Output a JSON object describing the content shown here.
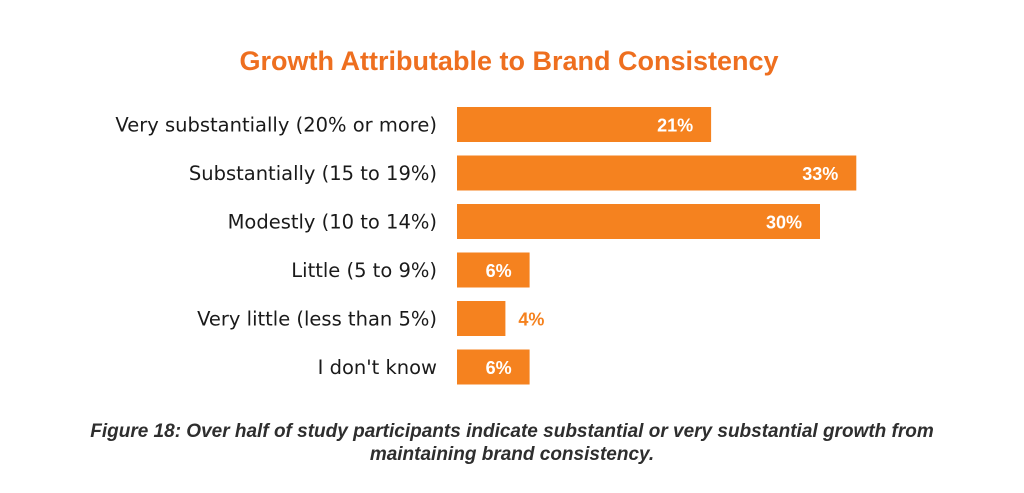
{
  "chart_data": {
    "type": "bar",
    "orientation": "horizontal",
    "title": "Growth Attributable to Brand Consistency",
    "categories": [
      "Very substantially (20% or more)",
      "Substantially (15 to 19%)",
      "Modestly (10 to 14%)",
      "Little (5 to 9%)",
      "Very little (less than 5%)",
      "I don't know"
    ],
    "values": [
      21,
      33,
      30,
      6,
      4,
      6
    ],
    "value_labels": [
      "21%",
      "33%",
      "30%",
      "6%",
      "4%",
      "6%"
    ],
    "xlabel": "",
    "ylabel": "",
    "xlim": [
      0,
      45
    ],
    "grid": false,
    "legend": "none",
    "colors": {
      "bar": "#F5821F",
      "title": "#EE6F1F",
      "label_inside": "#FFFFFF",
      "label_outside": "#F5821F"
    }
  },
  "caption": "Figure 18: Over half of study participants indicate substantial or very substantial growth from maintaining brand consistency."
}
